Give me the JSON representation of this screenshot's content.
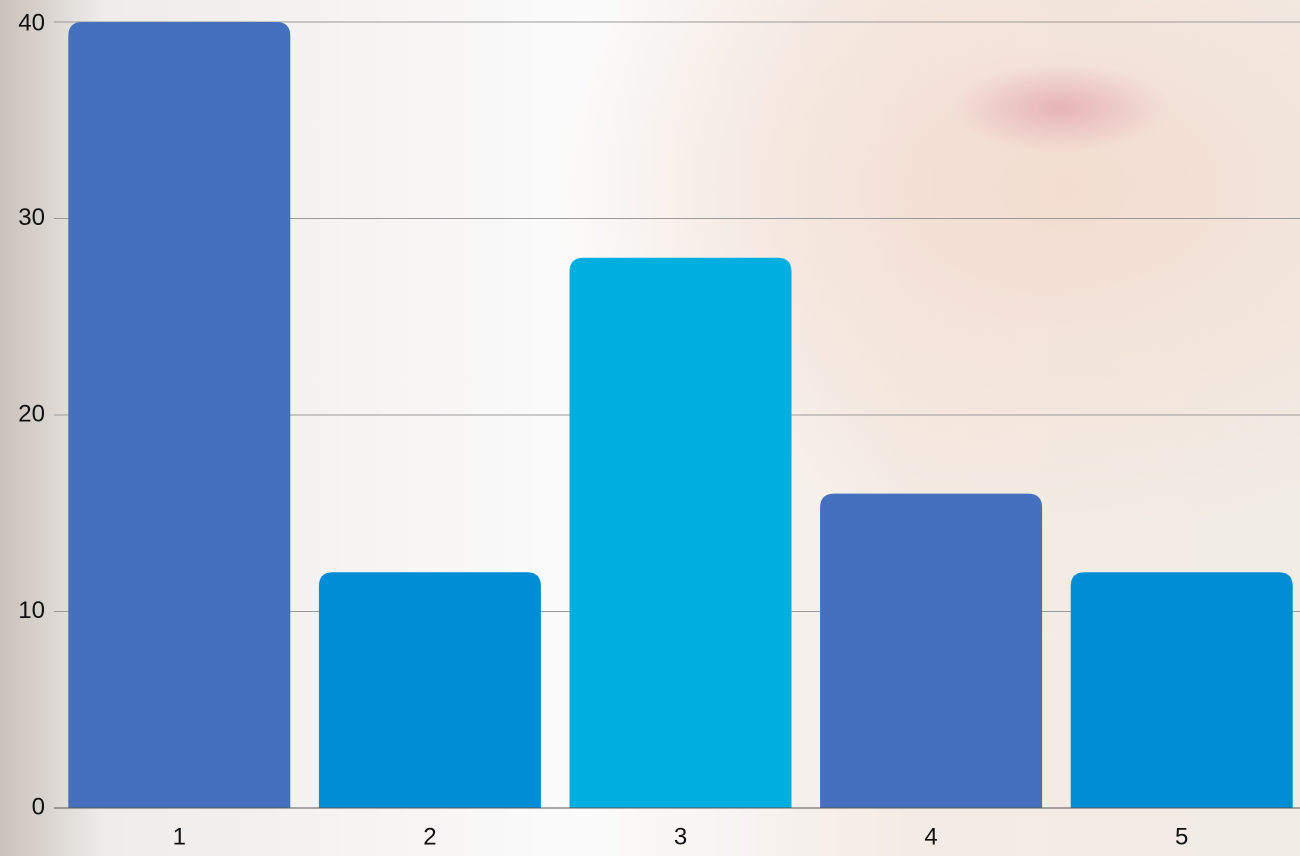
{
  "chart_data": {
    "type": "bar",
    "categories": [
      "1",
      "2",
      "3",
      "4",
      "5"
    ],
    "values": [
      40,
      12,
      28,
      16,
      12
    ],
    "colors": [
      "#4570be",
      "#008dd6",
      "#00aee0",
      "#4570be",
      "#008dd6"
    ],
    "ylim": [
      0,
      40
    ],
    "yticks": [
      0,
      10,
      20,
      30,
      40
    ],
    "grid": true
  }
}
